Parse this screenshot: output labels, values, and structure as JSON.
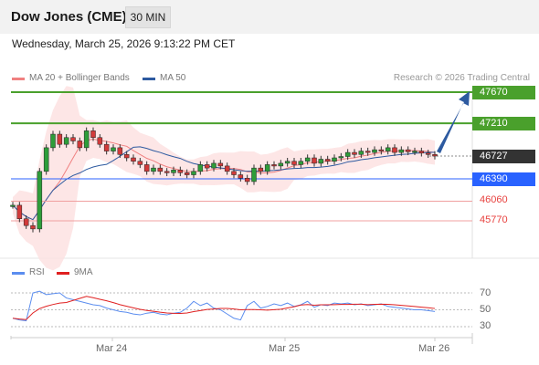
{
  "header": {
    "title": "Dow Jones (CME)",
    "timeframe": "30 MIN"
  },
  "timestamp": "Wednesday, March 25, 2026 9:13:22 PM CET",
  "legend": [
    {
      "label": "MA 20 + Bollinger Bands",
      "color": "#f08080"
    },
    {
      "label": "MA 50",
      "color": "#2d5aa0"
    }
  ],
  "credit": "Research © 2026 Trading Central",
  "price_levels": [
    {
      "value": "47670",
      "kind": "resistance",
      "color": "#4aa02c"
    },
    {
      "value": "47210",
      "kind": "resistance",
      "color": "#4aa02c"
    },
    {
      "value": "46727",
      "kind": "current",
      "color": "#333333"
    },
    {
      "value": "46390",
      "kind": "pivot",
      "color": "#2962ff"
    },
    {
      "value": "46060",
      "kind": "support",
      "color": "#e8423f"
    },
    {
      "value": "45770",
      "kind": "support",
      "color": "#e8423f"
    }
  ],
  "indicator_legend": [
    {
      "label": "RSI",
      "color": "#5b8def"
    },
    {
      "label": "9MA",
      "color": "#e02020"
    }
  ],
  "rsi_levels": [
    "70",
    "50",
    "30"
  ],
  "x_axis": [
    "Mar 24",
    "Mar 25",
    "Mar 26"
  ],
  "chart_data": {
    "type": "candlestick",
    "series_price": [
      46000,
      45800,
      45700,
      45650,
      46500,
      46850,
      47050,
      46900,
      47000,
      46950,
      46850,
      47100,
      47000,
      46900,
      46800,
      46850,
      46750,
      46700,
      46650,
      46600,
      46500,
      46550,
      46500,
      46480,
      46520,
      46480,
      46450,
      46500,
      46600,
      46550,
      46620,
      46580,
      46500,
      46450,
      46400,
      46350,
      46550,
      46500,
      46600,
      46580,
      46620,
      46650,
      46600,
      46650,
      46700,
      46620,
      46680,
      46650,
      46700,
      46720,
      46780,
      46750,
      46800,
      46780,
      46820,
      46800,
      46850,
      46780,
      46820,
      46790,
      46800,
      46770,
      46750,
      46727
    ],
    "series_rsi": [
      40,
      38,
      37,
      70,
      72,
      68,
      69,
      70,
      64,
      62,
      60,
      58,
      56,
      55,
      52,
      50,
      48,
      47,
      45,
      44,
      46,
      47,
      45,
      44,
      46,
      47,
      52,
      60,
      55,
      58,
      52,
      50,
      45,
      40,
      38,
      55,
      60,
      52,
      54,
      57,
      55,
      58,
      54,
      56,
      60,
      53,
      56,
      55,
      58,
      57,
      58,
      56,
      57,
      55,
      56,
      57,
      54,
      53,
      52,
      51,
      50,
      50,
      49,
      48
    ],
    "rsi_scale": [
      30,
      70
    ]
  }
}
